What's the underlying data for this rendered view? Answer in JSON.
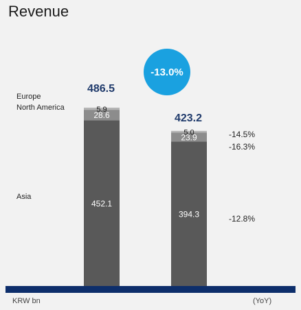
{
  "title": "Revenue",
  "footer": {
    "unit": "KRW bn",
    "yoy_label": "(YoY)"
  },
  "change_badge": "-13.0%",
  "legend": {
    "europe": "Europe",
    "north_america": "North America",
    "asia": "Asia"
  },
  "chart_data": {
    "type": "bar",
    "stacked": true,
    "title": "Revenue",
    "unit": "KRW bn",
    "categories": [
      "",
      ""
    ],
    "series": [
      {
        "name": "Asia",
        "values": [
          452.1,
          394.3
        ],
        "labels": [
          "452.1",
          "394.3"
        ],
        "color": "#595959"
      },
      {
        "name": "North America",
        "values": [
          28.6,
          23.9
        ],
        "labels": [
          "28.6",
          "23.9"
        ],
        "color": "#8c8c8c"
      },
      {
        "name": "Europe",
        "values": [
          5.9,
          5.0
        ],
        "labels": [
          "5.9",
          "5.0"
        ],
        "color": "#b5b5b5"
      }
    ],
    "totals": [
      "486.5",
      "423.2"
    ],
    "total_values": [
      486.5,
      423.2
    ],
    "yoy_change": {
      "total": "-13.0%",
      "Europe": "-14.5%",
      "North America": "-16.3%",
      "Asia": "-12.8%"
    },
    "ylim": [
      0,
      486.5
    ],
    "grid": false
  }
}
